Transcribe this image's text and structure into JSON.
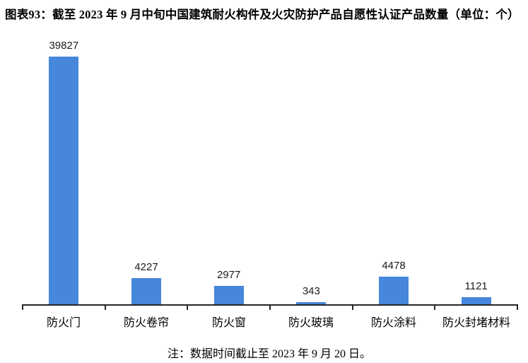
{
  "title": "图表93：截至 2023 年 9 月中旬中国建筑耐火构件及火灾防护产品自愿性认证产品数量（单位：个）",
  "note": "注：数据时间截止至 2023 年 9 月 20 日。",
  "colors": {
    "bar": "#4686db",
    "axis": "#262626",
    "text": "#000000"
  },
  "chart_data": {
    "type": "bar",
    "title": "截至 2023 年 9 月中旬中国建筑耐火构件及火灾防护产品自愿性认证产品数量（单位：个）",
    "categories": [
      "防火门",
      "防火卷帘",
      "防火窗",
      "防火玻璃",
      "防火涂料",
      "防火封堵材料"
    ],
    "values": [
      39827,
      4227,
      2977,
      343,
      4478,
      1121
    ],
    "xlabel": "",
    "ylabel": "",
    "ylim": [
      0,
      40000
    ],
    "grid": false,
    "legend": false,
    "y_axis_shown": false,
    "value_labels_shown": true
  }
}
